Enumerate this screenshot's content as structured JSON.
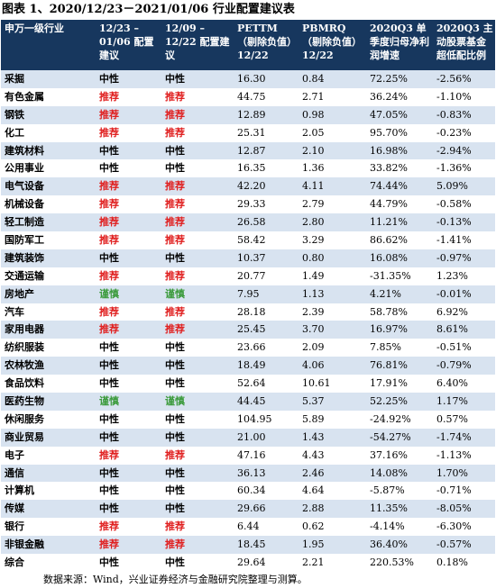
{
  "title": "图表 1、2020/12/23－2021/01/06 行业配置建议表",
  "colors": {
    "header_bg": "#17375e",
    "row_alt": "#d8e3f0",
    "recommend": "#e02020",
    "caution": "#3a9a3a",
    "neutral": "#000000"
  },
  "headers": [
    "申万一级行业",
    "12/23 –\n01/06 配置建议",
    "12/09 –\n12/22 配置建议",
    "PETTM （剔除负值）12/22",
    "PBMRQ （剔除负值）12/22",
    "2020Q3 单季度归母净利润增速",
    "2020Q3 主动股票基金超低配比例"
  ],
  "rows": [
    {
      "name": "采掘",
      "cur": "中性",
      "prev": "中性",
      "pe": "16.30",
      "pb": "0.84",
      "growth": "72.25%",
      "fund": "-2.56%"
    },
    {
      "name": "有色金属",
      "cur": "推荐",
      "prev": "推荐",
      "pe": "44.75",
      "pb": "2.71",
      "growth": "36.24%",
      "fund": "-1.10%"
    },
    {
      "name": "钢铁",
      "cur": "推荐",
      "prev": "推荐",
      "pe": "12.89",
      "pb": "0.98",
      "growth": "47.05%",
      "fund": "-0.83%"
    },
    {
      "name": "化工",
      "cur": "推荐",
      "prev": "推荐",
      "pe": "25.31",
      "pb": "2.05",
      "growth": "95.70%",
      "fund": "-0.23%"
    },
    {
      "name": "建筑材料",
      "cur": "中性",
      "prev": "中性",
      "pe": "12.87",
      "pb": "2.10",
      "growth": "16.98%",
      "fund": "-2.94%"
    },
    {
      "name": "公用事业",
      "cur": "中性",
      "prev": "中性",
      "pe": "16.35",
      "pb": "1.36",
      "growth": "33.82%",
      "fund": "-1.36%"
    },
    {
      "name": "电气设备",
      "cur": "推荐",
      "prev": "推荐",
      "pe": "42.20",
      "pb": "4.11",
      "growth": "74.44%",
      "fund": "5.09%"
    },
    {
      "name": "机械设备",
      "cur": "推荐",
      "prev": "推荐",
      "pe": "29.33",
      "pb": "2.79",
      "growth": "44.79%",
      "fund": "-0.58%"
    },
    {
      "name": "轻工制造",
      "cur": "推荐",
      "prev": "推荐",
      "pe": "26.58",
      "pb": "2.80",
      "growth": "11.21%",
      "fund": "-0.13%"
    },
    {
      "name": "国防军工",
      "cur": "推荐",
      "prev": "推荐",
      "pe": "58.42",
      "pb": "3.29",
      "growth": "86.62%",
      "fund": "-1.41%"
    },
    {
      "name": "建筑装饰",
      "cur": "中性",
      "prev": "中性",
      "pe": "10.37",
      "pb": "0.80",
      "growth": "16.08%",
      "fund": "-0.97%"
    },
    {
      "name": "交通运输",
      "cur": "推荐",
      "prev": "推荐",
      "pe": "20.77",
      "pb": "1.49",
      "growth": "-31.35%",
      "fund": "1.23%"
    },
    {
      "name": "房地产",
      "cur": "谨慎",
      "prev": "谨慎",
      "pe": "7.95",
      "pb": "1.13",
      "growth": "4.21%",
      "fund": "-0.01%"
    },
    {
      "name": "汽车",
      "cur": "推荐",
      "prev": "推荐",
      "pe": "28.18",
      "pb": "2.39",
      "growth": "58.78%",
      "fund": "6.92%"
    },
    {
      "name": "家用电器",
      "cur": "推荐",
      "prev": "推荐",
      "pe": "25.45",
      "pb": "3.70",
      "growth": "16.97%",
      "fund": "8.61%"
    },
    {
      "name": "纺织服装",
      "cur": "中性",
      "prev": "中性",
      "pe": "23.66",
      "pb": "2.09",
      "growth": "7.85%",
      "fund": "-0.51%"
    },
    {
      "name": "农林牧渔",
      "cur": "中性",
      "prev": "中性",
      "pe": "18.49",
      "pb": "4.06",
      "growth": "76.81%",
      "fund": "-0.79%"
    },
    {
      "name": "食品饮料",
      "cur": "中性",
      "prev": "中性",
      "pe": "52.64",
      "pb": "10.61",
      "growth": "17.91%",
      "fund": "6.40%"
    },
    {
      "name": "医药生物",
      "cur": "谨慎",
      "prev": "谨慎",
      "pe": "44.45",
      "pb": "5.37",
      "growth": "52.25%",
      "fund": "1.17%"
    },
    {
      "name": "休闲服务",
      "cur": "中性",
      "prev": "中性",
      "pe": "104.95",
      "pb": "5.89",
      "growth": "-24.92%",
      "fund": "0.57%"
    },
    {
      "name": "商业贸易",
      "cur": "中性",
      "prev": "中性",
      "pe": "21.00",
      "pb": "1.43",
      "growth": "-54.27%",
      "fund": "-1.74%"
    },
    {
      "name": "电子",
      "cur": "推荐",
      "prev": "推荐",
      "pe": "47.16",
      "pb": "4.43",
      "growth": "37.16%",
      "fund": "-1.13%"
    },
    {
      "name": "通信",
      "cur": "中性",
      "prev": "中性",
      "pe": "36.13",
      "pb": "2.46",
      "growth": "14.08%",
      "fund": "1.70%"
    },
    {
      "name": "计算机",
      "cur": "中性",
      "prev": "中性",
      "pe": "60.34",
      "pb": "4.64",
      "growth": "-5.87%",
      "fund": "-0.71%"
    },
    {
      "name": "传媒",
      "cur": "中性",
      "prev": "中性",
      "pe": "29.66",
      "pb": "2.88",
      "growth": "11.35%",
      "fund": "-8.05%"
    },
    {
      "name": "银行",
      "cur": "推荐",
      "prev": "推荐",
      "pe": "6.44",
      "pb": "0.62",
      "growth": "-4.14%",
      "fund": "-6.30%"
    },
    {
      "name": "非银金融",
      "cur": "推荐",
      "prev": "推荐",
      "pe": "18.45",
      "pb": "1.95",
      "growth": "36.40%",
      "fund": "-0.57%"
    },
    {
      "name": "综合",
      "cur": "中性",
      "prev": "中性",
      "pe": "29.64",
      "pb": "2.21",
      "growth": "220.53%",
      "fund": "0.18%"
    }
  ],
  "source_note": "数据来源：Wind，兴业证券经济与金融研究院整理与测算。"
}
